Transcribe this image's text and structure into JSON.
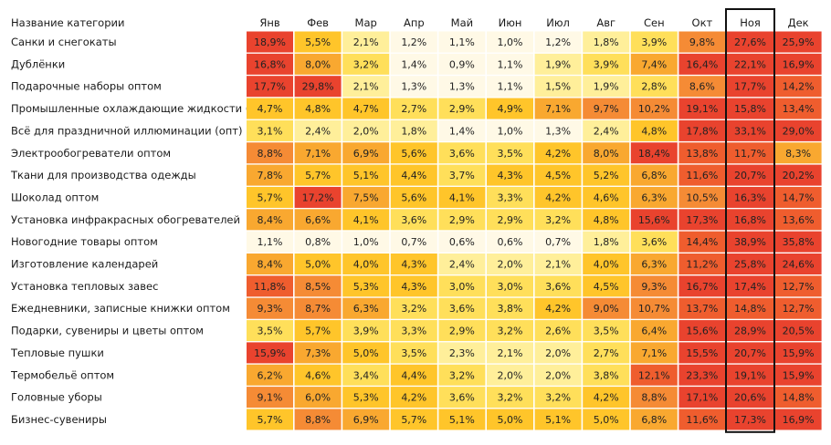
{
  "chart_data": {
    "type": "heatmap",
    "title": "",
    "header": "Название категории",
    "columns": [
      "Янв",
      "Фев",
      "Мар",
      "Апр",
      "Май",
      "Июн",
      "Июл",
      "Авг",
      "Сен",
      "Окт",
      "Ноя",
      "Дек"
    ],
    "highlighted_column": "Ноя",
    "rows": [
      {
        "category": "Санки и снегокаты",
        "values": [
          "18,9%",
          "5,5%",
          "2,1%",
          "1,2%",
          "1,1%",
          "1,0%",
          "1,2%",
          "1,8%",
          "3,9%",
          "9,8%",
          "27,6%",
          "25,9%"
        ]
      },
      {
        "category": "Дублёнки",
        "values": [
          "16,8%",
          "8,0%",
          "3,2%",
          "1,4%",
          "0,9%",
          "1,1%",
          "1,9%",
          "3,9%",
          "7,4%",
          "16,4%",
          "22,1%",
          "16,9%"
        ]
      },
      {
        "category": "Подарочные наборы оптом",
        "values": [
          "17,7%",
          "29,8%",
          "2,1%",
          "1,3%",
          "1,3%",
          "1,1%",
          "1,5%",
          "1,9%",
          "2,8%",
          "8,6%",
          "17,7%",
          "14,2%"
        ]
      },
      {
        "category": "Промышленные охлаждающие жидкости (опт)",
        "values": [
          "4,7%",
          "4,8%",
          "4,7%",
          "2,7%",
          "2,9%",
          "4,9%",
          "7,1%",
          "9,7%",
          "10,2%",
          "19,1%",
          "15,8%",
          "13,4%"
        ]
      },
      {
        "category": "Всё для праздничной иллюминации (опт)",
        "values": [
          "3,1%",
          "2,4%",
          "2,0%",
          "1,8%",
          "1,4%",
          "1,0%",
          "1,3%",
          "2,4%",
          "4,8%",
          "17,8%",
          "33,1%",
          "29,0%"
        ]
      },
      {
        "category": "Электрообогреватели оптом",
        "values": [
          "8,8%",
          "7,1%",
          "6,9%",
          "5,6%",
          "3,6%",
          "3,5%",
          "4,2%",
          "8,0%",
          "18,4%",
          "13,8%",
          "11,7%",
          "8,3%"
        ]
      },
      {
        "category": "Ткани для производства одежды",
        "values": [
          "7,8%",
          "5,7%",
          "5,1%",
          "4,4%",
          "3,7%",
          "4,3%",
          "4,5%",
          "5,2%",
          "6,8%",
          "11,6%",
          "20,7%",
          "20,2%"
        ]
      },
      {
        "category": "Шоколад оптом",
        "values": [
          "5,7%",
          "17,2%",
          "7,5%",
          "5,6%",
          "4,1%",
          "3,3%",
          "4,2%",
          "4,6%",
          "6,3%",
          "10,5%",
          "16,3%",
          "14,7%"
        ]
      },
      {
        "category": "Установка инфракрасных обогревателей",
        "values": [
          "8,4%",
          "6,6%",
          "4,1%",
          "3,6%",
          "2,9%",
          "2,9%",
          "3,2%",
          "4,8%",
          "15,6%",
          "17,3%",
          "16,8%",
          "13,6%"
        ]
      },
      {
        "category": "Новогодние товары оптом",
        "values": [
          "1,1%",
          "0,8%",
          "1,0%",
          "0,7%",
          "0,6%",
          "0,6%",
          "0,7%",
          "1,8%",
          "3,6%",
          "14,4%",
          "38,9%",
          "35,8%"
        ]
      },
      {
        "category": "Изготовление календарей",
        "values": [
          "8,4%",
          "5,0%",
          "4,0%",
          "4,3%",
          "2,4%",
          "2,0%",
          "2,1%",
          "4,0%",
          "6,3%",
          "11,2%",
          "25,8%",
          "24,6%"
        ]
      },
      {
        "category": "Установка тепловых завес",
        "values": [
          "11,8%",
          "8,5%",
          "5,3%",
          "4,3%",
          "3,0%",
          "3,0%",
          "3,6%",
          "4,5%",
          "9,3%",
          "16,7%",
          "17,4%",
          "12,7%"
        ]
      },
      {
        "category": "Ежедневники, записные книжки оптом",
        "values": [
          "9,3%",
          "8,7%",
          "6,3%",
          "3,2%",
          "3,6%",
          "3,8%",
          "4,2%",
          "9,0%",
          "10,7%",
          "13,7%",
          "14,8%",
          "12,7%"
        ]
      },
      {
        "category": "Подарки, сувениры и цветы оптом",
        "values": [
          "3,5%",
          "5,7%",
          "3,9%",
          "3,3%",
          "2,9%",
          "3,2%",
          "2,6%",
          "3,5%",
          "6,4%",
          "15,6%",
          "28,9%",
          "20,5%"
        ]
      },
      {
        "category": "Тепловые пушки",
        "values": [
          "15,9%",
          "7,3%",
          "5,0%",
          "3,5%",
          "2,3%",
          "2,1%",
          "2,0%",
          "2,7%",
          "7,1%",
          "15,5%",
          "20,7%",
          "15,9%"
        ]
      },
      {
        "category": "Термобельё оптом",
        "values": [
          "6,2%",
          "4,6%",
          "3,4%",
          "4,4%",
          "3,2%",
          "2,0%",
          "2,0%",
          "3,8%",
          "12,1%",
          "23,3%",
          "19,1%",
          "15,9%"
        ]
      },
      {
        "category": "Головные уборы",
        "values": [
          "9,1%",
          "6,0%",
          "5,3%",
          "4,2%",
          "3,6%",
          "3,2%",
          "3,2%",
          "4,2%",
          "8,8%",
          "17,1%",
          "20,6%",
          "14,8%"
        ]
      },
      {
        "category": "Бизнес-сувениры",
        "values": [
          "5,7%",
          "8,8%",
          "6,9%",
          "5,7%",
          "5,1%",
          "5,0%",
          "5,1%",
          "5,0%",
          "6,8%",
          "11,6%",
          "17,3%",
          "16,9%"
        ]
      }
    ],
    "color_scale": {
      "stops": [
        "#fff9e6",
        "#ffef9a",
        "#ffdf5a",
        "#ffc52a",
        "#f9a830",
        "#f58b35",
        "#ef5d2e",
        "#e9432e"
      ],
      "thresholds": [
        1.5,
        2.5,
        4.0,
        6.0,
        8.5,
        11.0,
        15.0
      ]
    },
    "highlight_border_color": "#111111"
  }
}
